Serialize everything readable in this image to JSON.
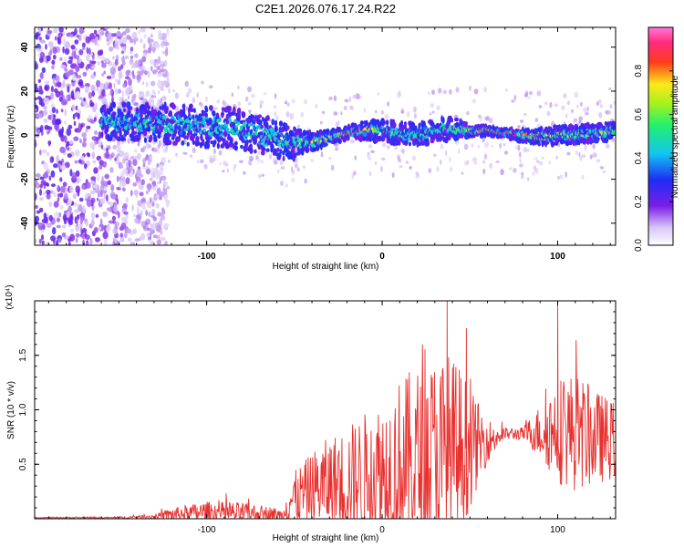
{
  "title": "C2E1.2026.076.17.24.R22",
  "colors": {
    "axis": "#000000",
    "snr_line": "#e8302e",
    "background": "#ffffff"
  },
  "chart_data": [
    {
      "id": "spectrogram",
      "type": "heatmap",
      "xlabel": "Height of straight line (km)",
      "ylabel": "Frequency (Hz)",
      "xlim": [
        -198,
        133
      ],
      "ylim": [
        -50,
        49
      ],
      "xticks": [
        -100,
        0,
        100
      ],
      "yticks": [
        -40,
        -20,
        0,
        20,
        40
      ],
      "colorbar": {
        "label": "Normalized spectral amplitude",
        "range": [
          0,
          1
        ],
        "ticks": [
          0.0,
          0.2,
          0.4,
          0.6,
          0.8
        ],
        "colormap": "rainbow (white-violet-blue-cyan-green-yellow-red-magenta)"
      },
      "ridge": {
        "description": "narrow band of high amplitude near 0 Hz",
        "x": [
          -160,
          -140,
          -120,
          -100,
          -80,
          -60,
          -50,
          -40,
          -30,
          -20,
          -10,
          0,
          10,
          20,
          30,
          40,
          50,
          60,
          70,
          80,
          90,
          100,
          110,
          120,
          133
        ],
        "y": [
          6,
          6,
          5,
          4,
          3,
          -2,
          -4,
          -3,
          -1,
          1,
          2,
          2,
          1,
          0,
          2,
          3,
          2,
          2,
          1,
          0,
          -1,
          0,
          0,
          1,
          2
        ],
        "band_halfwidth": [
          8,
          8,
          9,
          9,
          9,
          9,
          7,
          4,
          3,
          3,
          4,
          5,
          5,
          5,
          5,
          5,
          3,
          2,
          2,
          3,
          4,
          4,
          4,
          4,
          4
        ],
        "peak_amplitude": [
          0.45,
          0.5,
          0.5,
          0.5,
          0.55,
          0.55,
          0.6,
          0.75,
          0.8,
          0.85,
          0.85,
          0.6,
          0.55,
          0.6,
          0.6,
          0.6,
          0.8,
          0.9,
          0.95,
          0.9,
          0.9,
          0.75,
          0.7,
          0.7,
          0.65
        ]
      },
      "noise_region": {
        "description": "scattered low/medium amplitude noise at low heights",
        "x_range": [
          -198,
          -130
        ]
      }
    },
    {
      "id": "snr",
      "type": "line",
      "xlabel": "Height of straight line (km)",
      "ylabel": "SNR (10 * v/v)",
      "y_multiplier_label": "(x10⁴)",
      "xlim": [
        -198,
        133
      ],
      "ylim": [
        0,
        2.0
      ],
      "xticks": [
        -100,
        0,
        100
      ],
      "yticks": [
        0.5,
        1.0,
        1.5
      ],
      "ytick_labels": [
        "0.5",
        "1.0",
        "1.5"
      ],
      "envelope": {
        "x": [
          -198,
          -150,
          -130,
          -120,
          -100,
          -80,
          -65,
          -56,
          -55,
          -45,
          -35,
          -20,
          -10,
          0,
          10,
          20,
          30,
          37,
          45,
          50,
          60,
          70,
          80,
          90,
          100,
          110,
          120,
          133
        ],
        "base": [
          0.01,
          0.01,
          0.02,
          0.04,
          0.06,
          0.05,
          0.04,
          0.03,
          0.15,
          0.22,
          0.3,
          0.35,
          0.38,
          0.42,
          0.45,
          0.5,
          0.55,
          0.55,
          0.6,
          0.65,
          0.72,
          0.78,
          0.78,
          0.8,
          0.82,
          0.8,
          0.75,
          0.72
        ],
        "amp": [
          0.005,
          0.008,
          0.02,
          0.06,
          0.1,
          0.1,
          0.08,
          0.05,
          0.2,
          0.3,
          0.4,
          0.5,
          0.6,
          0.7,
          0.85,
          0.9,
          0.95,
          1.0,
          0.8,
          0.55,
          0.2,
          0.06,
          0.06,
          0.25,
          0.5,
          0.55,
          0.45,
          0.35
        ]
      },
      "notable_peaks": [
        {
          "x": 37,
          "y": 2.0
        },
        {
          "x": 100,
          "y": 2.0
        },
        {
          "x": 48,
          "y": 1.75
        },
        {
          "x": 23,
          "y": 1.6
        }
      ]
    }
  ]
}
